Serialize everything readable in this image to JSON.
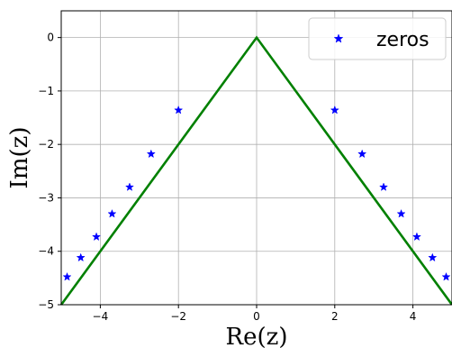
{
  "chart_data": {
    "type": "scatter",
    "title": "",
    "xlabel": "Re(z)",
    "ylabel": "Im(z)",
    "xlim": [
      -5,
      5
    ],
    "ylim": [
      -5,
      0.5
    ],
    "xticks": [
      -4,
      -2,
      0,
      2,
      4
    ],
    "yticks": [
      0,
      -1,
      -2,
      -3,
      -4,
      -5
    ],
    "grid": true,
    "legend_position": "top-right",
    "series": [
      {
        "name": "zeros",
        "kind": "scatter",
        "marker": "star",
        "color": "#0000ff",
        "points": [
          [
            -2.0,
            -1.36
          ],
          [
            -2.7,
            -2.18
          ],
          [
            -3.25,
            -2.8
          ],
          [
            -3.7,
            -3.3
          ],
          [
            -4.1,
            -3.73
          ],
          [
            -4.5,
            -4.12
          ],
          [
            -4.85,
            -4.48
          ],
          [
            2.0,
            -1.36
          ],
          [
            2.7,
            -2.18
          ],
          [
            3.25,
            -2.8
          ],
          [
            3.7,
            -3.3
          ],
          [
            4.1,
            -3.73
          ],
          [
            4.5,
            -4.12
          ],
          [
            4.85,
            -4.48
          ]
        ]
      },
      {
        "kind": "line",
        "color": "#008000",
        "points": [
          [
            -5,
            -5
          ],
          [
            0,
            0
          ],
          [
            5,
            -5
          ]
        ]
      }
    ]
  }
}
